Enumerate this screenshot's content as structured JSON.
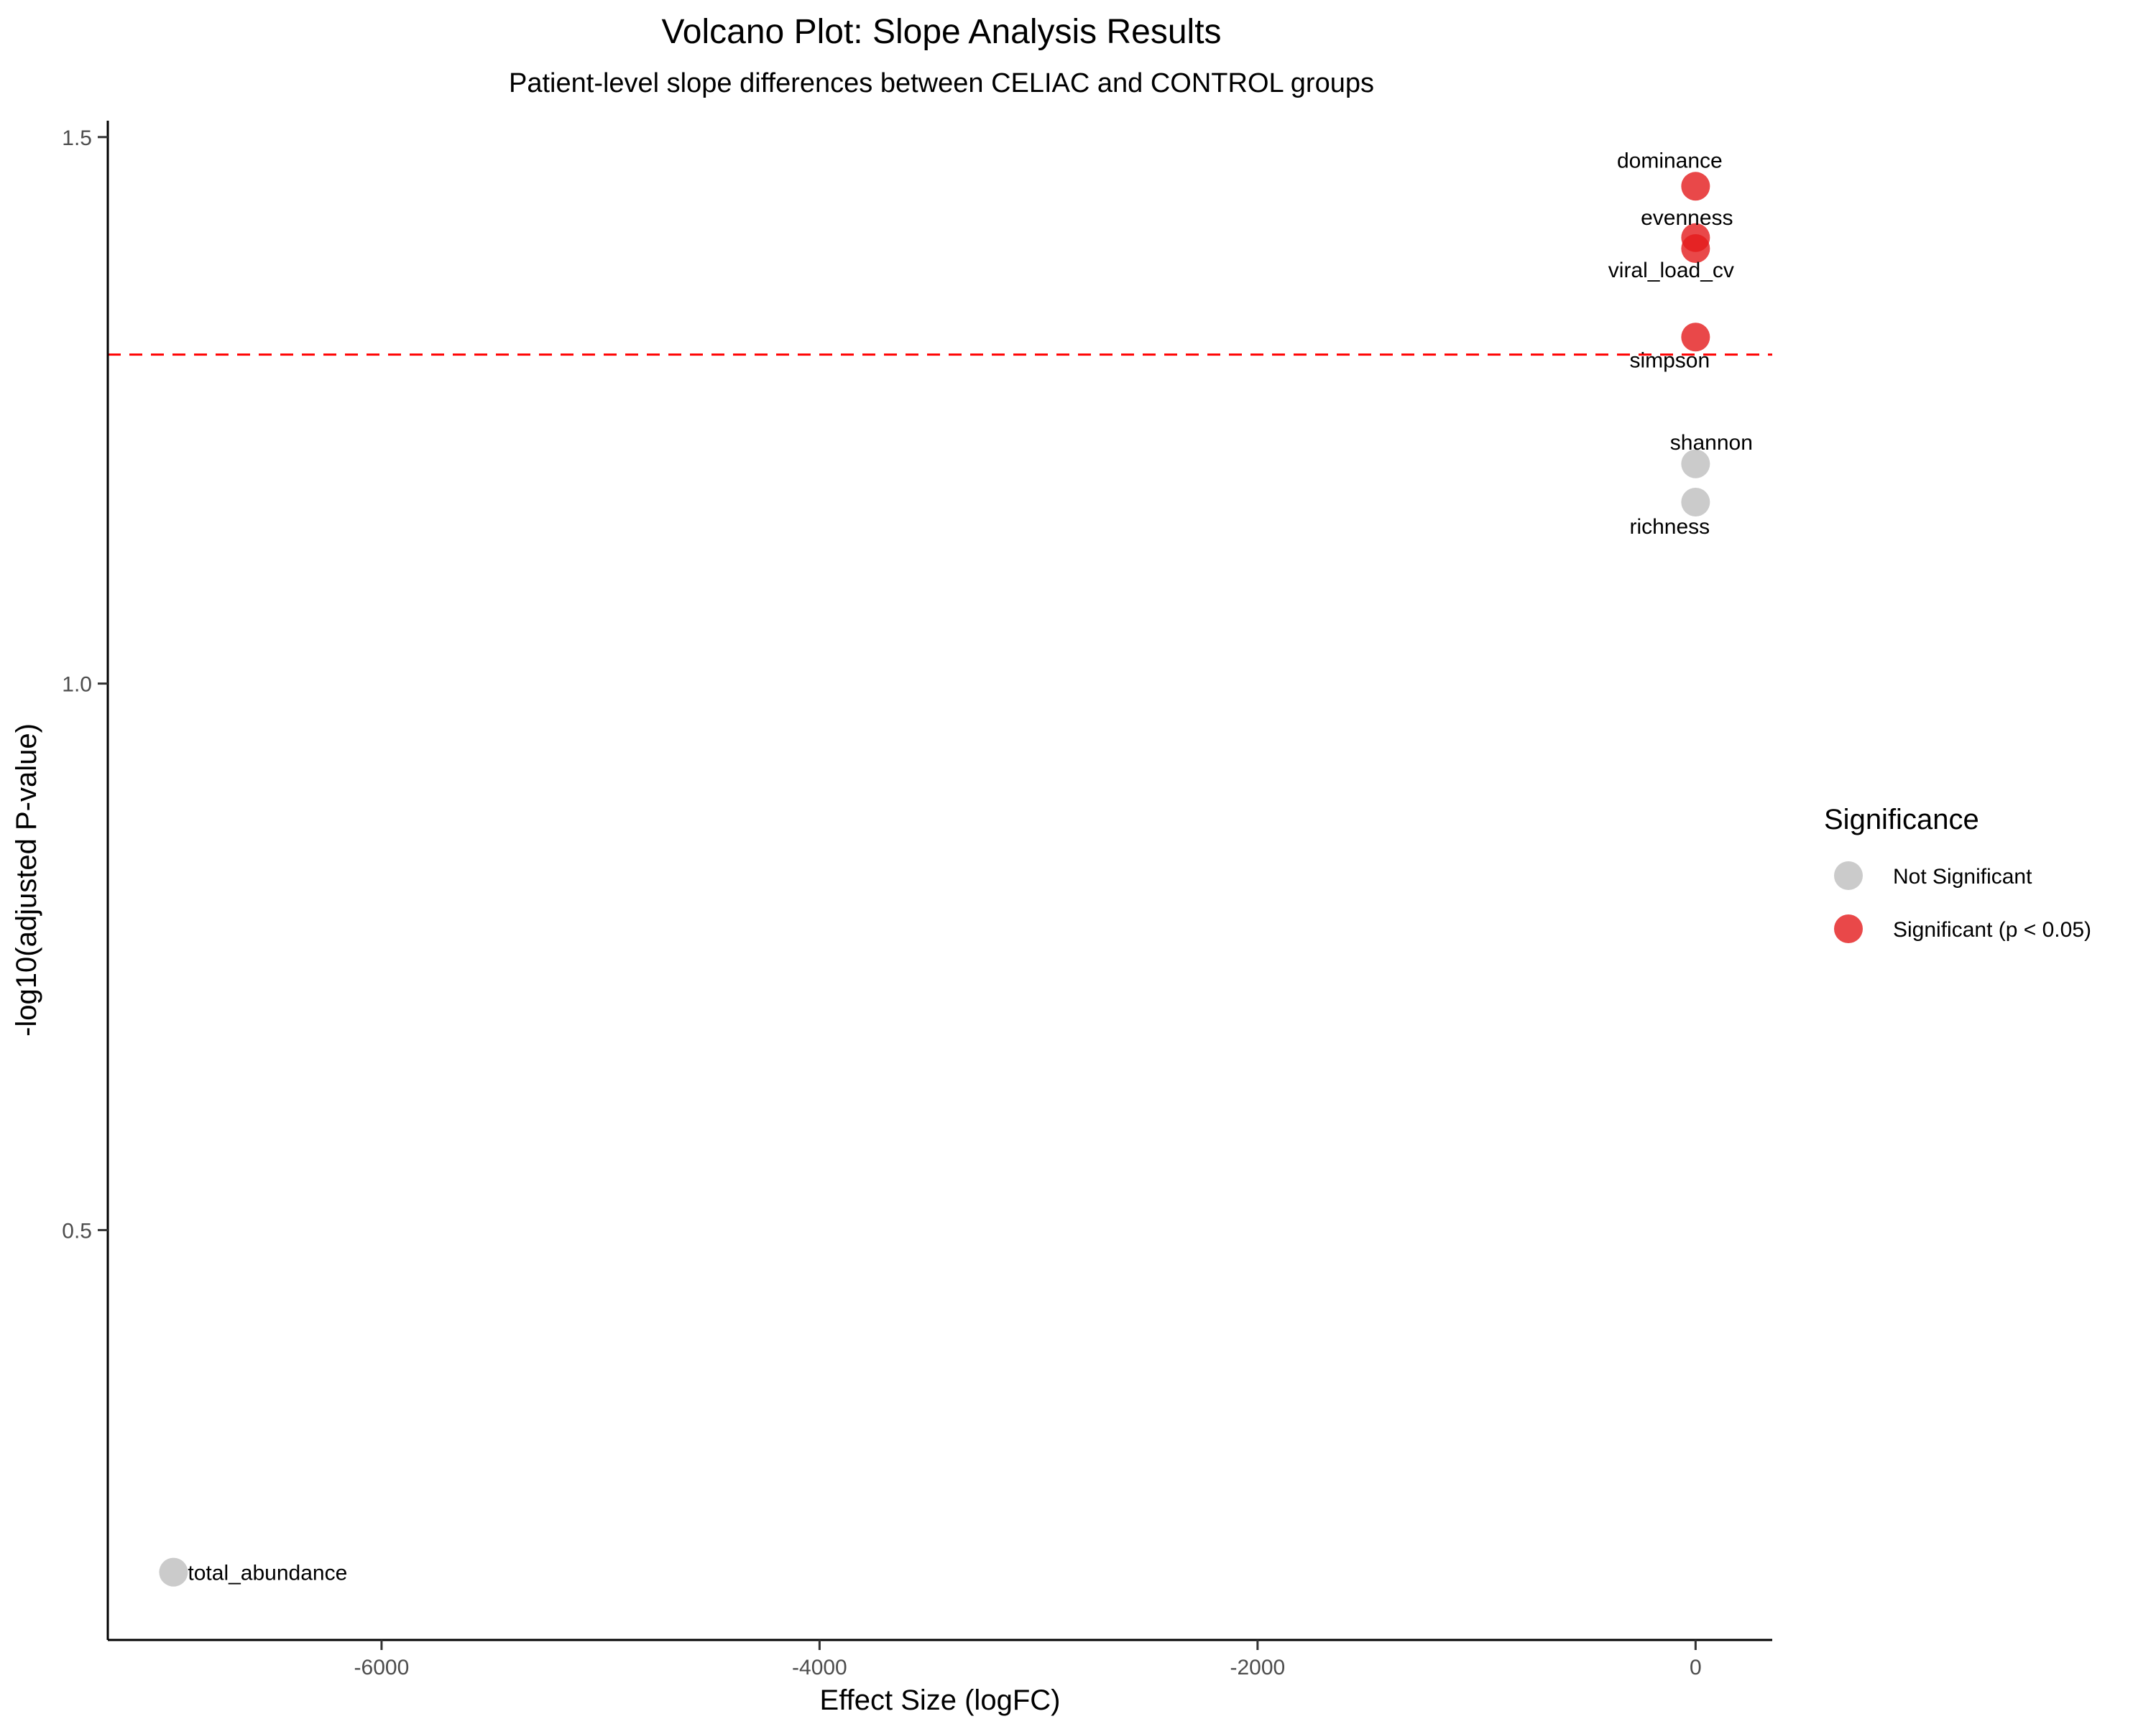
{
  "chart_data": {
    "type": "scatter",
    "title": "Volcano Plot: Slope Analysis Results",
    "subtitle": "Patient-level slope differences between CELIAC and CONTROL groups",
    "xlabel": "Effect Size (logFC)",
    "ylabel": "-log10(adjusted P-value)",
    "xlim": [
      -7250,
      350
    ],
    "ylim": [
      0.125,
      1.515
    ],
    "xticks": [
      -6000,
      -4000,
      -2000,
      0
    ],
    "xtick_labels": [
      "-6000",
      "-4000",
      "-2000",
      "0"
    ],
    "yticks": [
      0.5,
      1.0,
      1.5
    ],
    "ytick_labels": [
      "0.5",
      "1.0",
      "1.5"
    ],
    "threshold": {
      "y": 1.301,
      "color": "#ff0000",
      "style": "dashed"
    },
    "grid": false,
    "legend": {
      "title": "Significance",
      "placement": "right",
      "entries": [
        {
          "label": "Not Significant",
          "color": "#bebebe"
        },
        {
          "label": "Significant (p < 0.05)",
          "color": "#e41a1c"
        }
      ]
    },
    "points": [
      {
        "label": "dominance",
        "x": 0,
        "y": 1.455,
        "group": "Significant (p < 0.05)"
      },
      {
        "label": "evenness",
        "x": 0,
        "y": 1.408,
        "group": "Significant (p < 0.05)"
      },
      {
        "label": "viral_load_cv",
        "x": 0,
        "y": 1.398,
        "group": "Significant (p < 0.05)"
      },
      {
        "label": "simpson",
        "x": 0,
        "y": 1.317,
        "group": "Significant (p < 0.05)"
      },
      {
        "label": "shannon",
        "x": 0,
        "y": 1.201,
        "group": "Not Significant"
      },
      {
        "label": "richness",
        "x": 0,
        "y": 1.166,
        "group": "Not Significant"
      },
      {
        "label": "total_abundance",
        "x": -6950,
        "y": 0.187,
        "group": "Not Significant"
      }
    ]
  }
}
